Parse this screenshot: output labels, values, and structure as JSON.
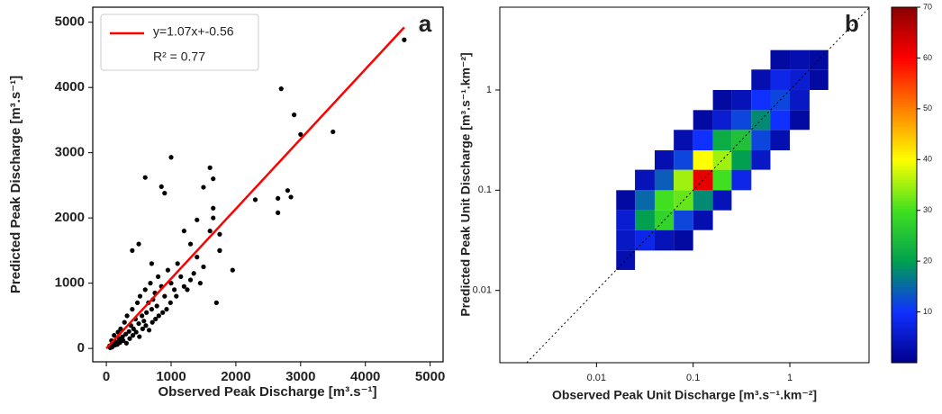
{
  "chart_data": [
    {
      "type": "scatter",
      "title": "a",
      "xlabel": "Observed Peak Discharge [m³.s⁻¹]",
      "ylabel": "Predicted Peak Discharge [m³.s⁻¹]",
      "xlim": [
        -210,
        5200
      ],
      "ylim": [
        -205,
        5230
      ],
      "xticks": [
        0,
        1000,
        2000,
        3000,
        4000,
        5000
      ],
      "yticks": [
        0,
        1000,
        2000,
        3000,
        4000,
        5000
      ],
      "legend_note": "R² = 0.77",
      "legend": "upper left",
      "series": [
        {
          "color": "#000000",
          "x": [
            50,
            80,
            100,
            120,
            150,
            180,
            200,
            220,
            250,
            280,
            300,
            320,
            350,
            380,
            400,
            420,
            450,
            480,
            500,
            520,
            550,
            580,
            600,
            620,
            650,
            680,
            700,
            720,
            750,
            780,
            800,
            850,
            900,
            950,
            1000,
            1050,
            1100,
            1150,
            1200,
            1300,
            1400,
            1500,
            60,
            90,
            130,
            170,
            210,
            260,
            310,
            360,
            410,
            460,
            510,
            560,
            610,
            660,
            710,
            760,
            810,
            870,
            930,
            990,
            1080,
            1250,
            1350,
            1450,
            1750,
            4600,
            2700,
            2900,
            3000,
            3500,
            2650,
            2800,
            2850,
            2650,
            2300,
            1000,
            600,
            1600,
            1650,
            1500,
            850,
            900,
            1650,
            1650,
            1400,
            1200,
            1600,
            1950,
            1750,
            1750,
            1700,
            500,
            400,
            700,
            1300
          ],
          "y": [
            40,
            120,
            60,
            200,
            100,
            250,
            150,
            300,
            180,
            400,
            220,
            500,
            260,
            350,
            600,
            300,
            450,
            700,
            380,
            800,
            500,
            420,
            900,
            550,
            700,
            1000,
            600,
            750,
            850,
            650,
            1100,
            950,
            800,
            1200,
            1000,
            900,
            1300,
            1100,
            950,
            1050,
            1400,
            1250,
            10,
            20,
            50,
            60,
            90,
            120,
            80,
            150,
            200,
            250,
            180,
            300,
            350,
            280,
            400,
            450,
            500,
            550,
            600,
            700,
            800,
            900,
            1150,
            1000,
            1500,
            4730,
            3980,
            3580,
            3280,
            3320,
            2300,
            2420,
            2320,
            2080,
            2280,
            2930,
            2620,
            2770,
            2600,
            2470,
            2480,
            2380,
            2150,
            2000,
            1970,
            1800,
            1800,
            1200,
            1500,
            1750,
            700,
            1600,
            1500,
            1300,
            1600
          ]
        },
        {
          "name": "y=1.07x+-0.56",
          "color": "#ff0000",
          "kind": "line",
          "x": [
            0,
            4600
          ],
          "y": [
            0,
            4921.44
          ]
        }
      ]
    },
    {
      "type": "heatmap",
      "title": "b",
      "xlabel": "Observed Peak Unit Discharge [m³.s⁻¹.km⁻²]",
      "ylabel": "Predicted Peak Unit Discharge [m³.s⁻¹.km⁻²]",
      "log_x": true,
      "log_y": true,
      "diagonal": true,
      "xlim": [
        0.001,
        6.6
      ],
      "ylim": [
        0.0019,
        6.7
      ],
      "xticks": [
        0.01,
        0.1,
        1
      ],
      "yticks": [
        0.01,
        0.1,
        1
      ],
      "xbins": [
        0.016,
        0.025,
        0.04,
        0.063,
        0.1,
        0.16,
        0.25,
        0.4,
        0.63,
        1,
        1.6,
        2.5
      ],
      "ybins": [
        0.016,
        0.025,
        0.04,
        0.063,
        0.1,
        0.16,
        0.25,
        0.4,
        0.63,
        1,
        1.6,
        2.5
      ],
      "values": [
        [
          3,
          null,
          null,
          null,
          null,
          null,
          null,
          null,
          null,
          null,
          null
        ],
        [
          5,
          8,
          4,
          2,
          null,
          null,
          null,
          null,
          null,
          null,
          null
        ],
        [
          6,
          20,
          28,
          12,
          3,
          null,
          null,
          null,
          null,
          null,
          null
        ],
        [
          2,
          15,
          30,
          32,
          18,
          4,
          null,
          null,
          null,
          null,
          null
        ],
        [
          null,
          4,
          14,
          35,
          62,
          30,
          8,
          null,
          null,
          null,
          null
        ],
        [
          null,
          null,
          3,
          12,
          40,
          35,
          20,
          5,
          null,
          null,
          null
        ],
        [
          null,
          null,
          null,
          3,
          10,
          22,
          25,
          12,
          3,
          null,
          null
        ],
        [
          null,
          null,
          null,
          null,
          2,
          6,
          12,
          18,
          10,
          2,
          null
        ],
        [
          null,
          null,
          null,
          null,
          null,
          2,
          4,
          10,
          12,
          5,
          null
        ],
        [
          null,
          null,
          null,
          null,
          null,
          null,
          null,
          3,
          8,
          6,
          2
        ],
        [
          null,
          null,
          null,
          null,
          null,
          null,
          null,
          null,
          2,
          3,
          2
        ]
      ],
      "clim": [
        0,
        70
      ],
      "cticks": [
        10,
        20,
        30,
        40,
        50,
        60,
        70
      ],
      "colormap": [
        "#00008b",
        "#1030ff",
        "#00a050",
        "#40e020",
        "#ffff00",
        "#ff8000",
        "#ff0000",
        "#8b0000"
      ]
    }
  ]
}
